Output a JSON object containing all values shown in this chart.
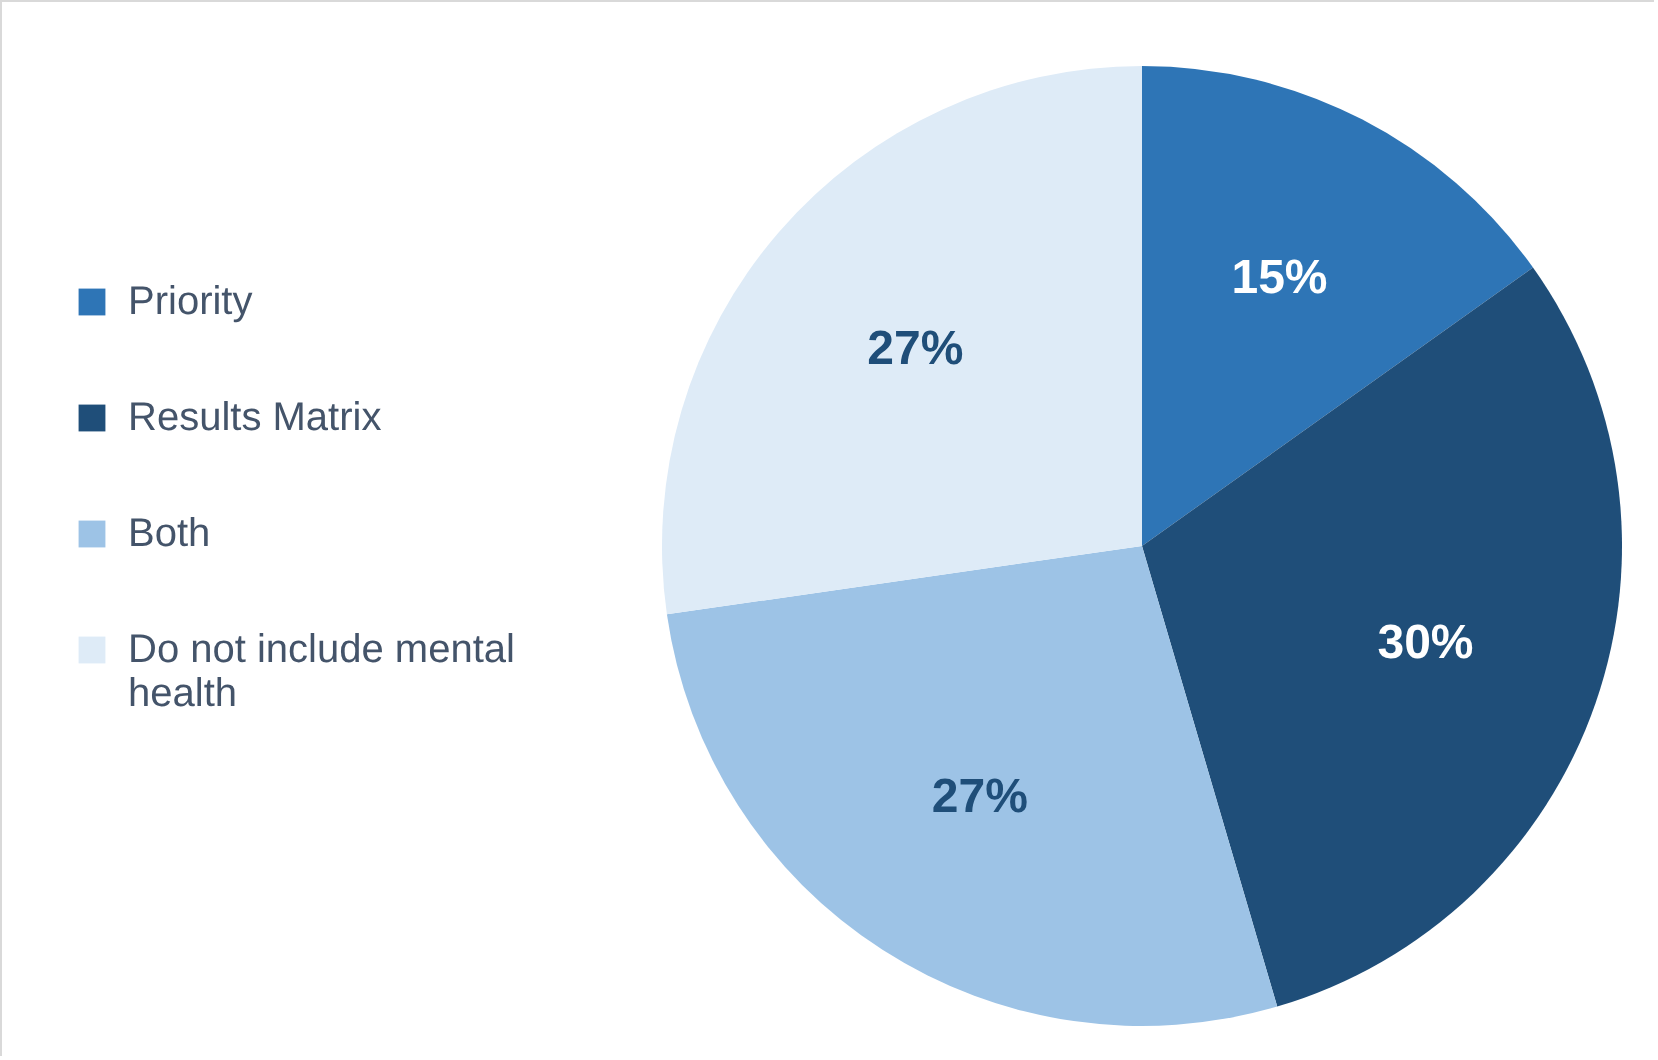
{
  "chart_data": {
    "type": "pie",
    "categories": [
      "Priority",
      "Results Matrix",
      "Both",
      "Do not include mental health"
    ],
    "values": [
      15,
      30,
      27,
      27
    ],
    "colors": [
      "#2e75b6",
      "#1f4e79",
      "#9dc3e6",
      "#deebf7"
    ],
    "value_labels": [
      "15%",
      "30%",
      "27%",
      "27%"
    ],
    "legend": "left"
  }
}
